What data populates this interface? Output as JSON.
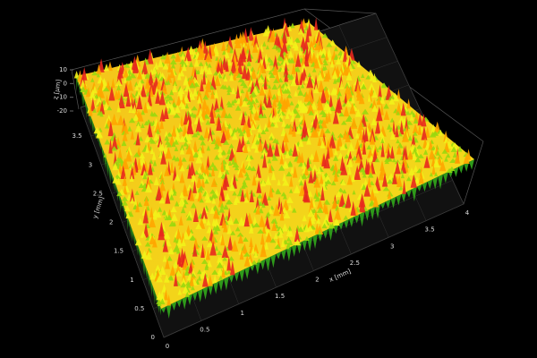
{
  "chart_data": {
    "type": "surface3d",
    "x_label": "x [mm]",
    "y_label": "y [mm]",
    "z_label": "z [µm]",
    "xlim": [
      0,
      4
    ],
    "xticks": [
      0,
      0.5,
      1,
      1.5,
      2,
      2.5,
      3,
      3.5,
      4
    ],
    "ylim": [
      0,
      4
    ],
    "yticks": [
      0,
      0.5,
      1,
      1.5,
      2,
      2.5,
      3,
      3.5
    ],
    "zlim": [
      -20,
      10
    ],
    "zticks": [
      10,
      0,
      -10,
      -20
    ],
    "colormap": [
      "#2e9a1a",
      "#9ad80e",
      "#f2f21a",
      "#ffa500",
      "#e8281e"
    ]
  }
}
